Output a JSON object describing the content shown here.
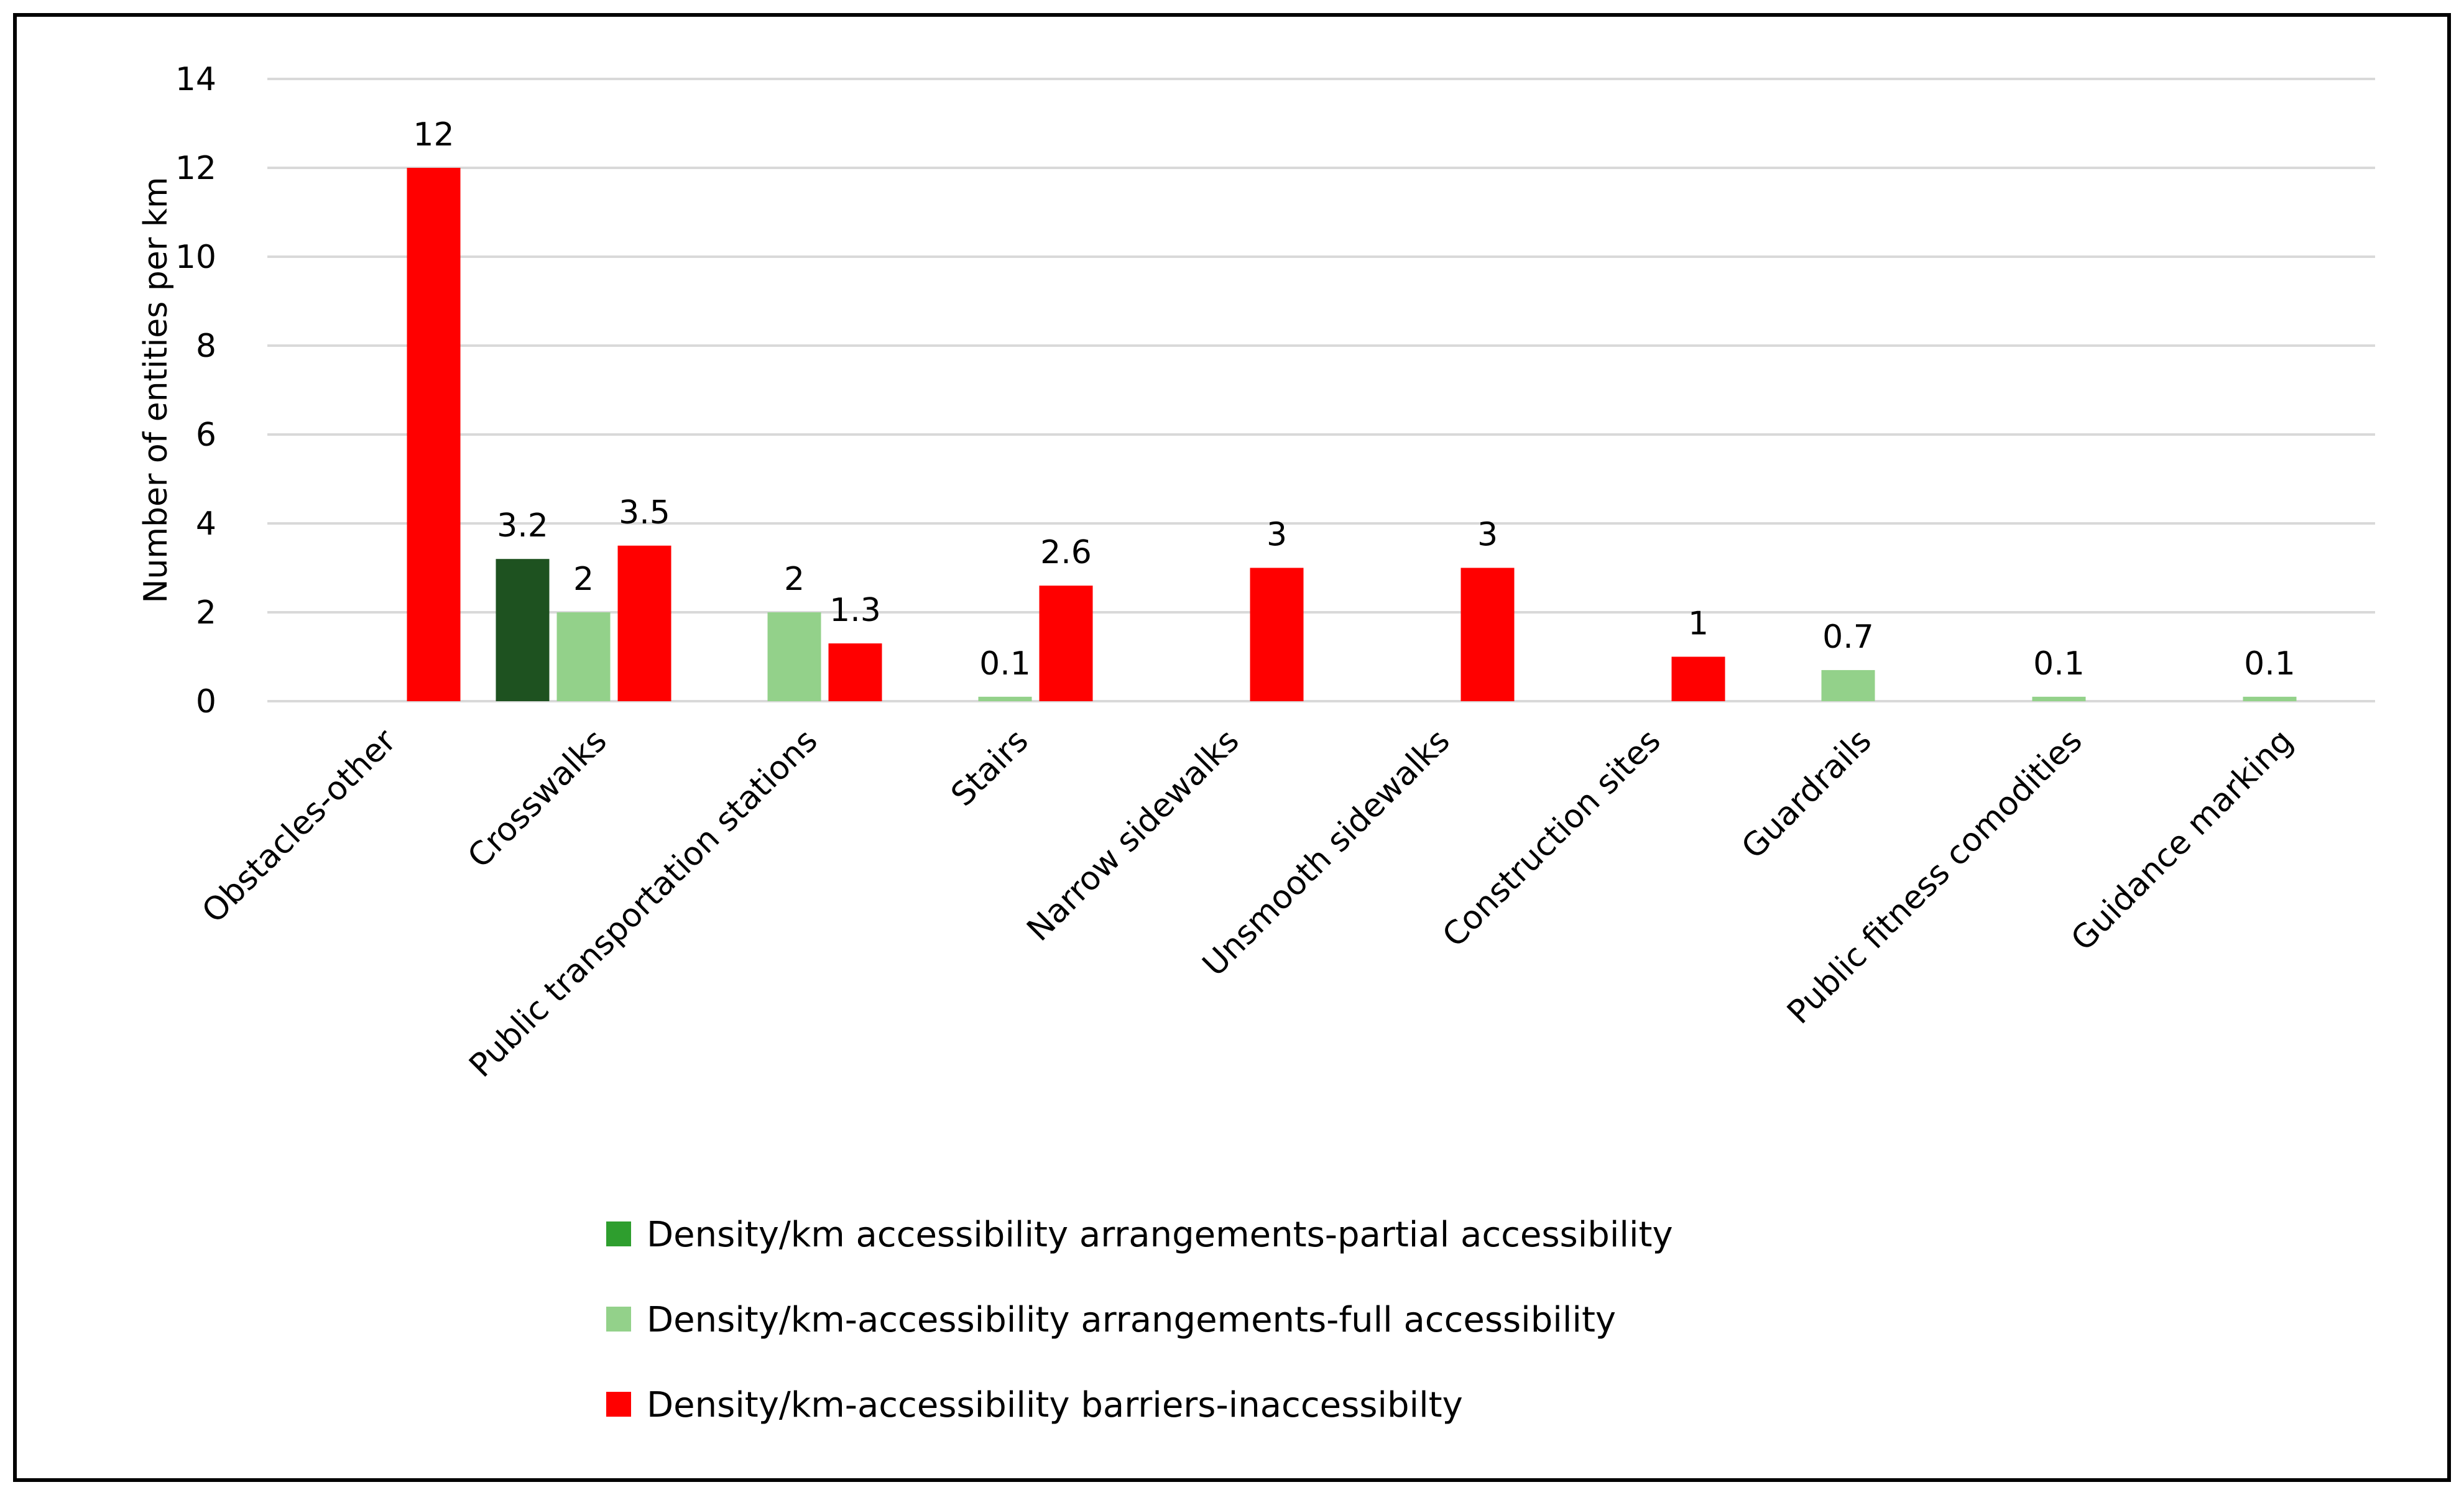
{
  "chart_data": {
    "type": "bar",
    "title": "",
    "xlabel": "",
    "ylabel": "Number of entities per km",
    "ylim": [
      0,
      14
    ],
    "yticks": [
      0,
      2,
      4,
      6,
      8,
      10,
      12,
      14
    ],
    "grid": true,
    "legend_position": "bottom",
    "categories": [
      "Obstacles-other",
      "Crosswalks",
      "Public transportation stations",
      "Stairs",
      "Narrow sidewalks",
      "Unsmooth sidewalks",
      "Construction sites",
      "Guardrails",
      "Public fitness comodities",
      "Guidance marking"
    ],
    "series": [
      {
        "name": "Density/km accessibility arrangements-partial accessibility",
        "color": "#1e5220",
        "legend_color": "#2e9e2e",
        "values": [
          null,
          3.2,
          null,
          null,
          null,
          null,
          null,
          null,
          null,
          null
        ],
        "labels": [
          "",
          "3.2",
          "",
          "",
          "",
          "",
          "",
          "",
          "",
          ""
        ]
      },
      {
        "name": "Density/km-accessibility arrangements-full accessibility",
        "color": "#93d18a",
        "legend_color": "#93d18a",
        "values": [
          null,
          2,
          2,
          0.1,
          null,
          null,
          null,
          0.7,
          0.1,
          0.1
        ],
        "labels": [
          "",
          "2",
          "2",
          "0.1",
          "",
          "",
          "",
          "0.7",
          "0.1",
          "0.1"
        ]
      },
      {
        "name": "Density/km-accessibility barriers-inaccessibilty",
        "color": "#ff0000",
        "legend_color": "#ff0000",
        "values": [
          12,
          3.5,
          1.3,
          2.6,
          3,
          3,
          1,
          null,
          null,
          null
        ],
        "labels": [
          "12",
          "3.5",
          "1.3",
          "2.6",
          "3",
          "3",
          "1",
          "",
          "",
          ""
        ]
      }
    ]
  }
}
